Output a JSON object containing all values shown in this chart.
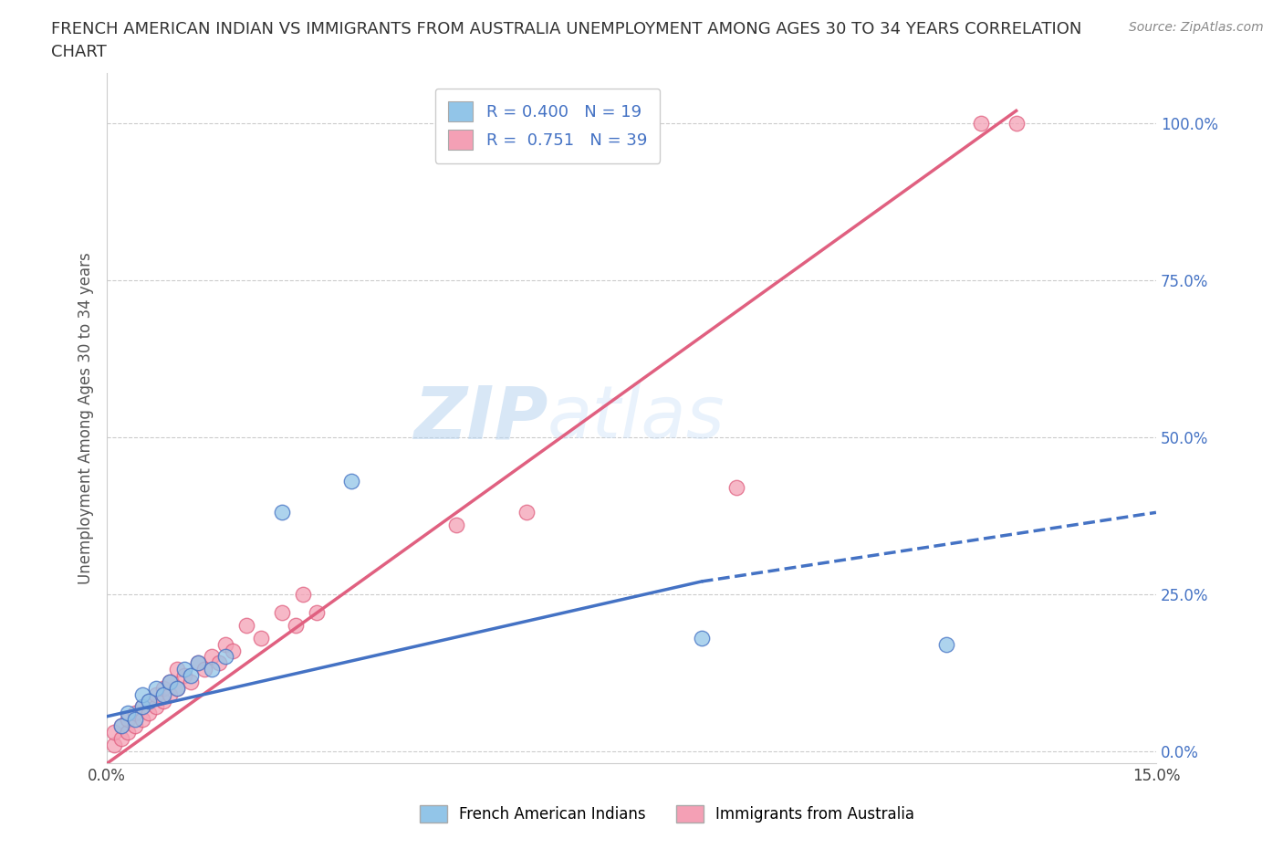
{
  "title_line1": "FRENCH AMERICAN INDIAN VS IMMIGRANTS FROM AUSTRALIA UNEMPLOYMENT AMONG AGES 30 TO 34 YEARS CORRELATION",
  "title_line2": "CHART",
  "source": "Source: ZipAtlas.com",
  "ylabel": "Unemployment Among Ages 30 to 34 years",
  "xlim": [
    0.0,
    0.15
  ],
  "ylim": [
    -0.02,
    1.08
  ],
  "yticks": [
    0.0,
    0.25,
    0.5,
    0.75,
    1.0
  ],
  "ytick_labels": [
    "0.0%",
    "25.0%",
    "50.0%",
    "75.0%",
    "100.0%"
  ],
  "xticks": [
    0.0,
    0.03,
    0.06,
    0.09,
    0.12,
    0.15
  ],
  "xtick_labels": [
    "0.0%",
    "",
    "",
    "",
    "",
    "15.0%"
  ],
  "blue_color": "#92C5E8",
  "pink_color": "#F4A0B5",
  "blue_line_color": "#4472C4",
  "pink_line_color": "#E06080",
  "legend_blue_R": "R = 0.400",
  "legend_blue_N": "N = 19",
  "legend_pink_R": "R =  0.751",
  "legend_pink_N": "N = 39",
  "watermark_zip": "ZIP",
  "watermark_atlas": "atlas",
  "blue_scatter_x": [
    0.002,
    0.003,
    0.004,
    0.005,
    0.005,
    0.006,
    0.007,
    0.008,
    0.009,
    0.01,
    0.011,
    0.012,
    0.013,
    0.015,
    0.017,
    0.025,
    0.035,
    0.085,
    0.12
  ],
  "blue_scatter_y": [
    0.04,
    0.06,
    0.05,
    0.07,
    0.09,
    0.08,
    0.1,
    0.09,
    0.11,
    0.1,
    0.13,
    0.12,
    0.14,
    0.13,
    0.15,
    0.38,
    0.43,
    0.18,
    0.17
  ],
  "pink_scatter_x": [
    0.001,
    0.001,
    0.002,
    0.002,
    0.003,
    0.003,
    0.004,
    0.004,
    0.005,
    0.005,
    0.006,
    0.006,
    0.007,
    0.007,
    0.008,
    0.008,
    0.009,
    0.009,
    0.01,
    0.01,
    0.011,
    0.012,
    0.013,
    0.014,
    0.015,
    0.016,
    0.017,
    0.018,
    0.02,
    0.022,
    0.025,
    0.027,
    0.028,
    0.03,
    0.05,
    0.06,
    0.09,
    0.125,
    0.13
  ],
  "pink_scatter_y": [
    0.01,
    0.03,
    0.02,
    0.04,
    0.03,
    0.05,
    0.04,
    0.06,
    0.05,
    0.07,
    0.06,
    0.08,
    0.07,
    0.09,
    0.08,
    0.1,
    0.09,
    0.11,
    0.1,
    0.13,
    0.12,
    0.11,
    0.14,
    0.13,
    0.15,
    0.14,
    0.17,
    0.16,
    0.2,
    0.18,
    0.22,
    0.2,
    0.25,
    0.22,
    0.36,
    0.38,
    0.42,
    1.0,
    1.0
  ],
  "blue_trend_x0": 0.0,
  "blue_trend_y0": 0.055,
  "blue_trend_x1": 0.085,
  "blue_trend_y1": 0.27,
  "blue_trend_xd": 0.15,
  "blue_trend_yd": 0.38,
  "pink_trend_x0": 0.0,
  "pink_trend_y0": -0.02,
  "pink_trend_x1": 0.13,
  "pink_trend_y1": 1.02,
  "background_color": "#FFFFFF",
  "grid_color": "#CCCCCC"
}
